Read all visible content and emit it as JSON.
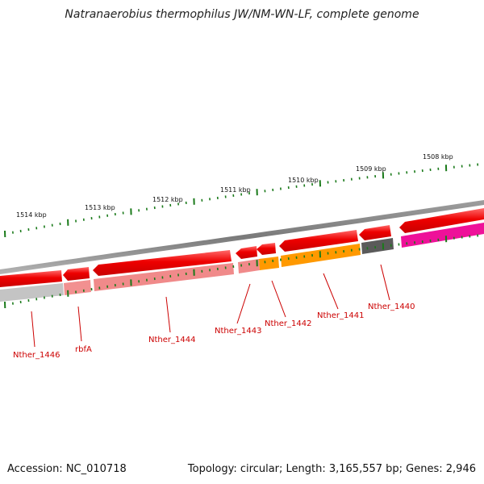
{
  "header": {
    "title": "Natranaerobius thermophilus JW/NM-WN-LF, complete genome"
  },
  "footer": {
    "accession": "Accession: NC_010718",
    "summary": "Topology: circular; Length: 3,165,557 bp; Genes: 2,946"
  },
  "scale_labels": [
    "1514 kbp",
    "1513 kbp",
    "1512 kbp",
    "1511 kbp",
    "1510 kbp",
    "1509 kbp",
    "1508 kbp"
  ],
  "gene_labels": [
    "Nther_1446",
    "rbfA",
    "Nther_1444",
    "Nther_1443",
    "Nther_1442",
    "Nther_1441",
    "Nther_1440"
  ],
  "colors": {
    "backbone": "#8a8a8a",
    "cds": "#ee0000",
    "gene_label": "#cc0000",
    "tick": "#1a7a1a",
    "gray_feature": "#bfbfbf",
    "pink_feature": "#f09090",
    "orange_feature": "#ff9900",
    "dark_feature": "#555555",
    "magenta_feature": "#ee1199"
  }
}
